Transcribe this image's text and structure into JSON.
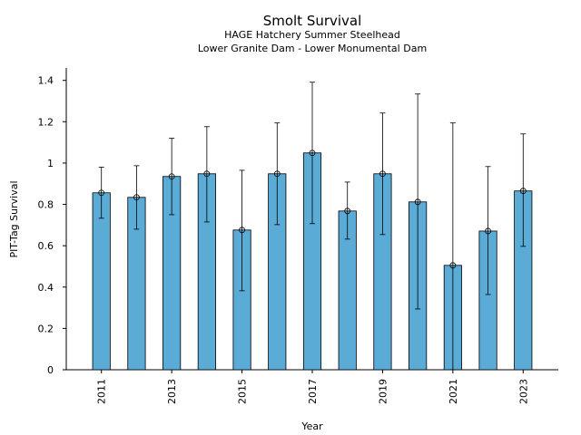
{
  "chart_data": {
    "type": "bar",
    "title": "Smolt Survival",
    "subtitle": [
      "HAGE Hatchery Summer Steelhead",
      "Lower Granite Dam - Lower Monumental Dam"
    ],
    "x_label": "Year",
    "y_label": "PIT-Tag Survival",
    "x": [
      2011,
      2012,
      2013,
      2014,
      2015,
      2016,
      2017,
      2018,
      2019,
      2020,
      2021,
      2022,
      2023
    ],
    "values": [
      0.856,
      0.834,
      0.935,
      0.948,
      0.676,
      0.948,
      1.049,
      0.768,
      0.948,
      0.812,
      0.505,
      0.671,
      0.865
    ],
    "lower": [
      0.733,
      0.68,
      0.75,
      0.715,
      0.382,
      0.702,
      0.707,
      0.632,
      0.654,
      0.294,
      0.0,
      0.364,
      0.597
    ],
    "upper": [
      0.98,
      0.987,
      1.12,
      1.176,
      0.965,
      1.194,
      1.391,
      0.908,
      1.242,
      1.334,
      1.194,
      0.983,
      1.141
    ],
    "color": "#5aabd6",
    "xlim": [
      2010,
      2024
    ],
    "xticks": [
      2011,
      2013,
      2015,
      2017,
      2019,
      2021,
      2023
    ],
    "ylim": [
      0,
      1.46
    ],
    "yticks": [
      0,
      0.2,
      0.4,
      0.6,
      0.8,
      1,
      1.2,
      1.4
    ]
  }
}
